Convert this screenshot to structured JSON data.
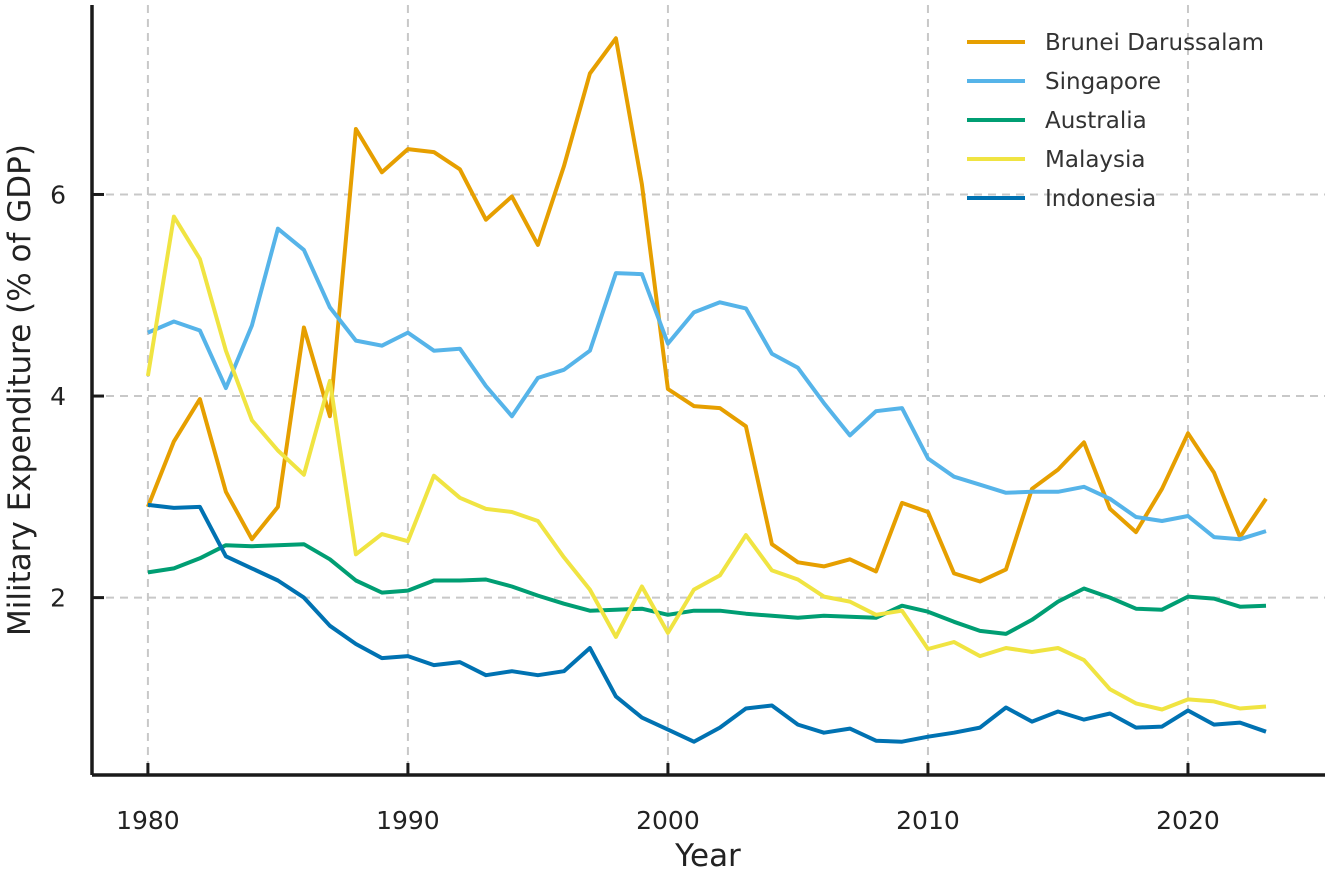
{
  "chart_data": {
    "type": "line",
    "title": "",
    "xlabel": "Year",
    "ylabel": "Military Expenditure (% of GDP)",
    "xlim": [
      1977.85,
      2025.27
    ],
    "ylim": [
      0.24,
      7.88
    ],
    "xticks": [
      1980,
      1990,
      2000,
      2010,
      2020
    ],
    "yticks": [
      2,
      4,
      6
    ],
    "grid": true,
    "legend_position": "top-right",
    "x_start": 1980,
    "series": [
      {
        "name": "Brunei Darussalam",
        "color": "#E69F00",
        "values": [
          2.9,
          3.55,
          3.97,
          3.05,
          2.58,
          2.9,
          4.68,
          3.8,
          6.65,
          6.22,
          6.45,
          6.42,
          6.25,
          5.75,
          5.98,
          5.5,
          6.28,
          7.2,
          7.55,
          6.1,
          4.07,
          3.9,
          3.88,
          3.7,
          2.53,
          2.35,
          2.31,
          2.38,
          2.26,
          2.94,
          2.85,
          2.24,
          2.16,
          2.28,
          3.08,
          3.27,
          3.54,
          2.88,
          2.65,
          3.08,
          3.63,
          3.24,
          2.6,
          2.98
        ]
      },
      {
        "name": "Singapore",
        "color": "#56B4E9",
        "values": [
          4.63,
          4.74,
          4.65,
          4.08,
          4.7,
          5.66,
          5.45,
          4.88,
          4.55,
          4.5,
          4.63,
          4.45,
          4.47,
          4.1,
          3.8,
          4.18,
          4.26,
          4.45,
          5.22,
          5.21,
          4.52,
          4.83,
          4.93,
          4.87,
          4.42,
          4.28,
          3.93,
          3.61,
          3.85,
          3.88,
          3.38,
          3.2,
          3.12,
          3.04,
          3.05,
          3.05,
          3.1,
          2.98,
          2.8,
          2.76,
          2.81,
          2.6,
          2.58,
          2.66
        ]
      },
      {
        "name": "Australia",
        "color": "#009E73",
        "values": [
          2.25,
          2.29,
          2.39,
          2.52,
          2.51,
          2.52,
          2.53,
          2.38,
          2.17,
          2.05,
          2.07,
          2.17,
          2.17,
          2.18,
          2.11,
          2.02,
          1.94,
          1.87,
          1.88,
          1.89,
          1.83,
          1.87,
          1.87,
          1.84,
          1.82,
          1.8,
          1.82,
          1.81,
          1.8,
          1.92,
          1.86,
          1.76,
          1.67,
          1.64,
          1.78,
          1.96,
          2.09,
          2.0,
          1.89,
          1.88,
          2.01,
          1.99,
          1.91,
          1.92
        ]
      },
      {
        "name": "Malaysia",
        "color": "#F0E442",
        "values": [
          4.2,
          5.78,
          5.36,
          4.45,
          3.76,
          3.46,
          3.22,
          4.15,
          2.43,
          2.63,
          2.56,
          3.21,
          2.99,
          2.88,
          2.85,
          2.76,
          2.4,
          2.08,
          1.61,
          2.11,
          1.65,
          2.08,
          2.22,
          2.62,
          2.27,
          2.18,
          2.01,
          1.96,
          1.83,
          1.87,
          1.49,
          1.56,
          1.42,
          1.5,
          1.46,
          1.5,
          1.38,
          1.09,
          0.95,
          0.89,
          0.99,
          0.97,
          0.9,
          0.92
        ]
      },
      {
        "name": "Indonesia",
        "color": "#0072B2",
        "values": [
          2.92,
          2.89,
          2.9,
          2.41,
          2.29,
          2.17,
          2.0,
          1.72,
          1.54,
          1.4,
          1.42,
          1.33,
          1.36,
          1.23,
          1.27,
          1.23,
          1.27,
          1.5,
          1.02,
          0.81,
          0.69,
          0.57,
          0.71,
          0.9,
          0.93,
          0.74,
          0.66,
          0.7,
          0.58,
          0.57,
          0.62,
          0.66,
          0.71,
          0.91,
          0.77,
          0.87,
          0.79,
          0.85,
          0.71,
          0.72,
          0.88,
          0.74,
          0.76,
          0.67
        ]
      }
    ]
  }
}
